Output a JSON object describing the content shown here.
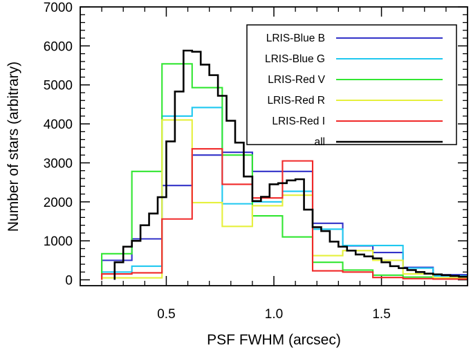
{
  "chart_data": {
    "type": "line",
    "step": true,
    "xlabel": "PSF FWHM (arcsec)",
    "ylabel": "Number of stars (arbitrary)",
    "xlim": [
      0.1,
      1.9
    ],
    "ylim": [
      -150,
      7000
    ],
    "x_ticks": [
      0.5,
      1.0,
      1.5
    ],
    "x_tick_labels": [
      "0.5",
      "1.0",
      "1.5"
    ],
    "y_ticks": [
      0,
      1000,
      2000,
      3000,
      4000,
      5000,
      6000,
      7000
    ],
    "y_tick_labels": [
      "0",
      "1000",
      "2000",
      "3000",
      "4000",
      "5000",
      "6000",
      "7000"
    ],
    "grid": false,
    "legend_position": "top-right",
    "series": [
      {
        "name": "LRIS-Blue B",
        "color": "#3232c8",
        "edges": [
          0.2,
          0.34,
          0.48,
          0.62,
          0.76,
          0.9,
          1.04,
          1.18,
          1.32,
          1.46,
          1.6,
          1.74,
          1.9
        ],
        "values": [
          500,
          1050,
          2420,
          3200,
          3270,
          2780,
          2780,
          1450,
          870,
          700,
          320,
          130
        ]
      },
      {
        "name": "LRIS-Blue G",
        "color": "#1ec8f0",
        "edges": [
          0.2,
          0.34,
          0.48,
          0.62,
          0.76,
          0.9,
          1.04,
          1.18,
          1.32,
          1.46,
          1.6,
          1.74,
          1.9
        ],
        "values": [
          200,
          350,
          4200,
          4420,
          1950,
          2000,
          2270,
          1300,
          880,
          880,
          300,
          100
        ]
      },
      {
        "name": "LRIS-Red V",
        "color": "#32e632",
        "edges": [
          0.2,
          0.34,
          0.48,
          0.62,
          0.76,
          0.9,
          1.04,
          1.18,
          1.32,
          1.46,
          1.6,
          1.74,
          1.9
        ],
        "values": [
          670,
          2780,
          5540,
          4930,
          3200,
          1640,
          1100,
          450,
          250,
          120,
          70,
          50
        ]
      },
      {
        "name": "LRIS-Red R",
        "color": "#e6f03c",
        "edges": [
          0.2,
          0.34,
          0.48,
          0.62,
          0.76,
          0.9,
          1.04,
          1.18,
          1.32,
          1.46,
          1.6,
          1.74,
          1.9
        ],
        "values": [
          50,
          50,
          4100,
          1980,
          1370,
          1900,
          2170,
          620,
          750,
          500,
          150,
          50
        ]
      },
      {
        "name": "LRIS-Red I",
        "color": "#f02828",
        "edges": [
          0.2,
          0.34,
          0.48,
          0.62,
          0.76,
          0.9,
          1.04,
          1.18,
          1.32,
          1.46,
          1.6,
          1.74,
          1.9
        ],
        "values": [
          150,
          180,
          1560,
          3360,
          2450,
          2100,
          3050,
          230,
          200,
          60,
          30,
          20
        ]
      },
      {
        "name": "all",
        "color": "#000000",
        "edges": [
          0.26,
          0.3,
          0.34,
          0.38,
          0.42,
          0.46,
          0.5,
          0.54,
          0.58,
          0.62,
          0.66,
          0.7,
          0.74,
          0.78,
          0.82,
          0.86,
          0.9,
          0.94,
          0.98,
          1.02,
          1.06,
          1.1,
          1.14,
          1.18,
          1.22,
          1.26,
          1.3,
          1.34,
          1.38,
          1.42,
          1.46,
          1.5,
          1.54,
          1.58,
          1.62,
          1.66,
          1.7,
          1.74,
          1.78,
          1.82,
          1.86,
          1.9
        ],
        "values": [
          450,
          850,
          1000,
          1400,
          1700,
          2120,
          3550,
          4830,
          5880,
          5850,
          5520,
          5250,
          4720,
          4080,
          3520,
          2650,
          2020,
          2130,
          2450,
          2480,
          2550,
          2580,
          1800,
          1350,
          1250,
          980,
          850,
          750,
          650,
          600,
          550,
          450,
          350,
          300,
          250,
          200,
          160,
          140,
          120,
          100,
          80
        ]
      }
    ]
  }
}
